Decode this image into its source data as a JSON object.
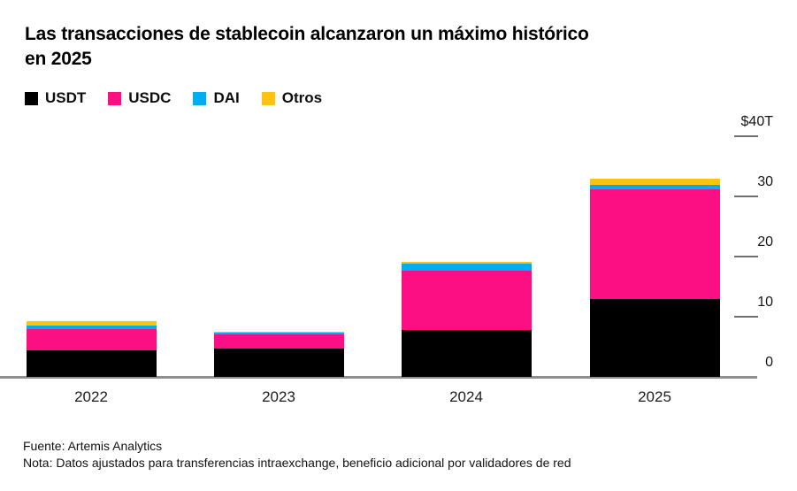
{
  "title": "Las transacciones de stablecoin alcanzaron un máximo histórico en 2025",
  "footer": {
    "source": "Fuente: Artemis Analytics",
    "note": "Nota: Datos ajustados para transferencias intraexchange, beneficio adicional por validadores de red"
  },
  "colors": {
    "usdt": "#000000",
    "usdc": "#FB0F82",
    "dai": "#00AEF0",
    "otros": "#FFC20E",
    "axis_tick": "#6f6f6f",
    "baseline": "#8f8f8f",
    "text": "#000000"
  },
  "chart_data": {
    "type": "bar",
    "subtype": "stacked",
    "title": "Las transacciones de stablecoin alcanzaron un máximo histórico en 2025",
    "unit": "trillion USD",
    "categories": [
      "2022",
      "2023",
      "2024",
      "2025"
    ],
    "series": [
      {
        "name": "USDT",
        "color": "#000000",
        "values": [
          4.4,
          4.7,
          7.8,
          12.9
        ]
      },
      {
        "name": "USDC",
        "color": "#FB0F82",
        "values": [
          3.5,
          2.4,
          9.8,
          18.3
        ]
      },
      {
        "name": "DAI",
        "color": "#00AEF0",
        "values": [
          0.6,
          0.2,
          1.2,
          0.7
        ]
      },
      {
        "name": "Otros",
        "color": "#FFC20E",
        "values": [
          0.7,
          0.2,
          0.3,
          1.0
        ]
      }
    ],
    "totals": [
      9.2,
      7.5,
      19.1,
      32.9
    ],
    "ylim": [
      0,
      40
    ],
    "yticks": [
      {
        "v": 40,
        "label": "$40T"
      },
      {
        "v": 30,
        "label": "30"
      },
      {
        "v": 20,
        "label": "20"
      },
      {
        "v": 10,
        "label": "10"
      },
      {
        "v": 0,
        "label": "0"
      }
    ],
    "yaxis_side": "right",
    "grid": "short right-side tick dashes below each y label",
    "legend_position": "top-left",
    "xlabel": "",
    "ylabel": ""
  }
}
